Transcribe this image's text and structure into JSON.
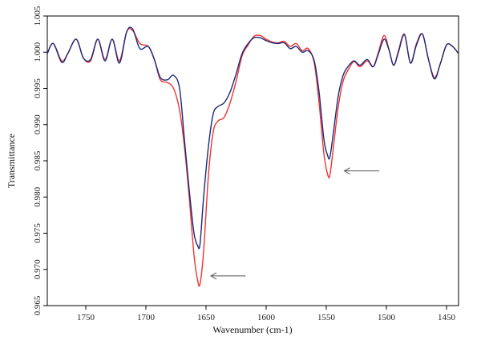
{
  "chart_data": {
    "type": "line",
    "title": "",
    "xlabel": "Wavenumber (cm-1)",
    "ylabel": "Transmittance",
    "x_reversed": true,
    "xlim": [
      1782,
      1440
    ],
    "ylim": [
      0.965,
      1.005
    ],
    "xticks": [
      1750,
      1700,
      1650,
      1600,
      1550,
      1500,
      1450
    ],
    "yticks": [
      0.965,
      0.97,
      0.975,
      0.98,
      0.985,
      0.99,
      0.995,
      1.0,
      1.005
    ],
    "ytick_labels": [
      "0.965",
      "0.970",
      "0.975",
      "0.980",
      "0.985",
      "0.990",
      "0.995",
      "1.000",
      "1.005"
    ],
    "grid": false,
    "colors": {
      "series_a": "#ee3333",
      "series_b": "#1a2a7a",
      "arrow": "#555555"
    },
    "series": [
      {
        "color_role": "series_a",
        "x": [
          1782,
          1777,
          1770,
          1765,
          1758,
          1752,
          1746,
          1740,
          1734,
          1728,
          1722,
          1716,
          1711,
          1705,
          1698,
          1693,
          1688,
          1682,
          1677,
          1672,
          1668,
          1664,
          1660,
          1657,
          1655,
          1652,
          1648,
          1644,
          1640,
          1635,
          1630,
          1625,
          1620,
          1615,
          1610,
          1605,
          1600,
          1595,
          1590,
          1585,
          1580,
          1575,
          1570,
          1565,
          1560,
          1556,
          1552,
          1549,
          1547,
          1544,
          1540,
          1536,
          1532,
          1527,
          1522,
          1516,
          1511,
          1507,
          1502,
          1498,
          1494,
          1490,
          1485,
          1480,
          1475,
          1470,
          1465,
          1460,
          1455,
          1450,
          1445,
          1440
        ],
        "y": [
          0.9998,
          1.0012,
          0.9988,
          0.9998,
          1.0018,
          0.9992,
          0.9988,
          1.0018,
          0.999,
          1.0018,
          0.9988,
          1.0028,
          1.003,
          1.0012,
          1.0008,
          0.999,
          0.9962,
          0.9958,
          0.995,
          0.992,
          0.987,
          0.98,
          0.972,
          0.9685,
          0.968,
          0.9725,
          0.983,
          0.989,
          0.9905,
          0.991,
          0.993,
          0.996,
          0.9995,
          1.001,
          1.0022,
          1.0023,
          1.0018,
          1.0014,
          1.0013,
          1.0015,
          1.0008,
          1.0012,
          1.0002,
          1.0005,
          0.9985,
          0.993,
          0.986,
          0.9832,
          0.983,
          0.987,
          0.9925,
          0.996,
          0.9975,
          0.9987,
          0.998,
          0.9988,
          0.998,
          0.9998,
          1.0023,
          1.0005,
          0.9982,
          1.0002,
          1.0025,
          0.9985,
          1.0012,
          1.0025,
          0.999,
          0.9965,
          0.9985,
          1.001,
          1.0008,
          0.9998
        ]
      },
      {
        "color_role": "series_b",
        "x": [
          1782,
          1777,
          1770,
          1765,
          1758,
          1752,
          1746,
          1740,
          1734,
          1728,
          1722,
          1716,
          1711,
          1705,
          1698,
          1693,
          1688,
          1682,
          1677,
          1672,
          1668,
          1664,
          1660,
          1657,
          1655,
          1652,
          1648,
          1644,
          1640,
          1635,
          1630,
          1625,
          1620,
          1615,
          1610,
          1605,
          1600,
          1595,
          1590,
          1585,
          1580,
          1575,
          1570,
          1565,
          1560,
          1556,
          1552,
          1549,
          1547,
          1544,
          1540,
          1536,
          1532,
          1527,
          1522,
          1516,
          1511,
          1507,
          1502,
          1498,
          1494,
          1490,
          1485,
          1480,
          1475,
          1470,
          1465,
          1460,
          1455,
          1450,
          1445,
          1440
        ],
        "y": [
          0.9998,
          1.0012,
          0.9986,
          0.9998,
          1.0018,
          0.9992,
          0.999,
          1.0018,
          0.9988,
          1.0018,
          0.9985,
          1.0028,
          1.0032,
          1.0005,
          1.0008,
          0.999,
          0.9965,
          0.9962,
          0.9968,
          0.995,
          0.988,
          0.981,
          0.975,
          0.9733,
          0.9735,
          0.98,
          0.987,
          0.9915,
          0.9925,
          0.993,
          0.9945,
          0.997,
          0.9998,
          1.0012,
          1.002,
          1.002,
          1.0016,
          1.0013,
          1.0012,
          1.0013,
          1.0005,
          1.0008,
          1.0,
          1.0002,
          0.9988,
          0.9945,
          0.988,
          0.9858,
          0.9855,
          0.989,
          0.994,
          0.9968,
          0.998,
          0.9988,
          0.9982,
          0.999,
          0.998,
          0.9996,
          1.0018,
          1.0004,
          0.9982,
          1.0,
          1.0024,
          0.9985,
          1.001,
          1.0025,
          0.999,
          0.9963,
          0.9985,
          1.001,
          1.0008,
          0.9998
        ]
      }
    ],
    "annotations": [
      {
        "type": "arrow",
        "from": [
          1617,
          0.9691
        ],
        "to": [
          1646,
          0.9691
        ]
      },
      {
        "type": "arrow",
        "from": [
          1506,
          0.9836
        ],
        "to": [
          1535,
          0.9836
        ]
      }
    ]
  }
}
